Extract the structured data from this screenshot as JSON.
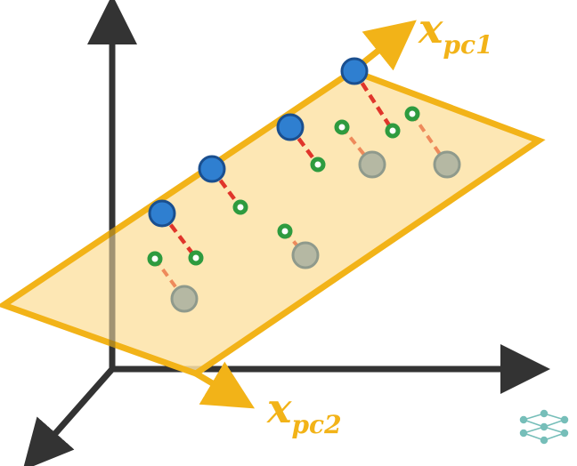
{
  "labels": {
    "pc1_main": "x",
    "pc1_sub": "pc1",
    "pc2_main": "x",
    "pc2_sub": "pc2"
  },
  "colors": {
    "plane_fill": "#fde3a7",
    "plane_stroke": "#f2b318",
    "axis": "#333333",
    "projected_point": "#2f7fd0",
    "projected_point_stroke": "#1a4f8f",
    "original_point": "#b5b8a3",
    "original_point_stroke": "#8f9a8c",
    "intermediate_point": "#2e9b3f",
    "projection_line_blue": "#e0352b",
    "projection_line_grey": "#ee8a5b",
    "logo": "#5fb3ad"
  },
  "icons": {
    "logo": "neural-network-logo-icon"
  }
}
